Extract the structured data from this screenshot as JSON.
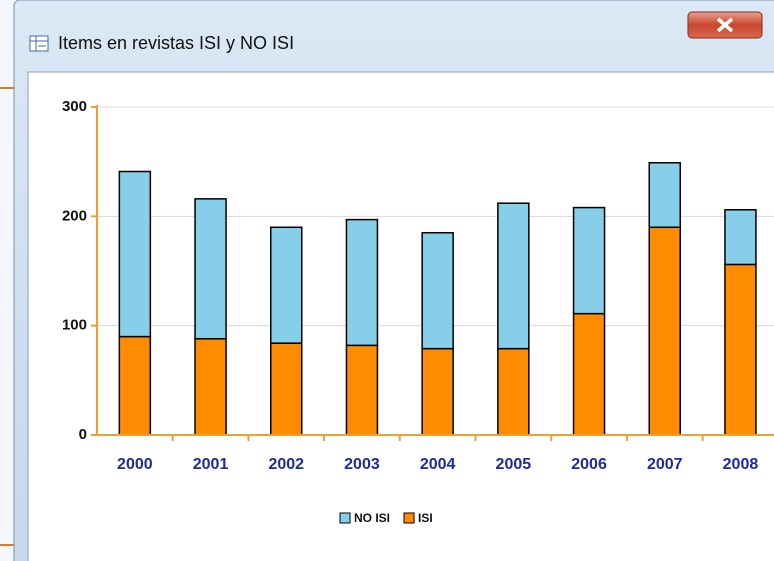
{
  "window": {
    "title": "Items en revistas ISI y NO ISI"
  },
  "chart_data": {
    "type": "stacked_bar",
    "categories": [
      "2000",
      "2001",
      "2002",
      "2003",
      "2004",
      "2005",
      "2006",
      "2007",
      "2008"
    ],
    "series": [
      {
        "name": "NO ISI",
        "color": "#87ceeb",
        "values": [
          151,
          128,
          106,
          115,
          106,
          133,
          97,
          59,
          50
        ]
      },
      {
        "name": "ISI",
        "color": "#ff8c00",
        "values": [
          90,
          88,
          84,
          82,
          79,
          79,
          111,
          190,
          156
        ]
      }
    ],
    "ylim": [
      0,
      300
    ],
    "yticks": [
      0,
      100,
      200,
      300
    ],
    "grid": true,
    "legend": "bottom"
  }
}
